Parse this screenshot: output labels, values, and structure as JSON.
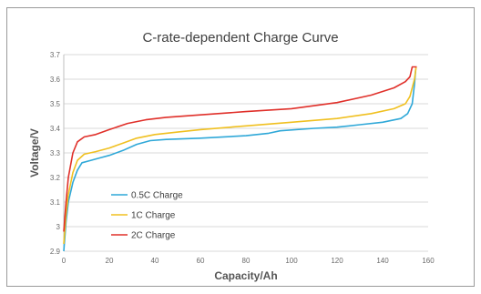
{
  "chart_data": {
    "type": "line",
    "title": "C-rate-dependent Charge Curve",
    "xlabel": "Capacity/Ah",
    "ylabel": "Voltage/V",
    "xlim": [
      0,
      160
    ],
    "ylim": [
      2.9,
      3.7
    ],
    "xticks": [
      "0",
      "20",
      "40",
      "60",
      "80",
      "100",
      "120",
      "140",
      "160"
    ],
    "yticks": [
      "2.9",
      "3",
      "3.1",
      "3.2",
      "3.3",
      "3.4",
      "3.5",
      "3.6",
      "3.7"
    ],
    "grid": "horizontal",
    "legend_position": "bottom-left",
    "series": [
      {
        "name": "0.5C Charge",
        "color": "#2fa8d8",
        "points": [
          [
            0,
            2.9
          ],
          [
            1,
            3.02
          ],
          [
            2,
            3.1
          ],
          [
            4,
            3.18
          ],
          [
            6,
            3.23
          ],
          [
            8,
            3.26
          ],
          [
            12,
            3.27
          ],
          [
            16,
            3.28
          ],
          [
            20,
            3.29
          ],
          [
            26,
            3.31
          ],
          [
            32,
            3.335
          ],
          [
            38,
            3.35
          ],
          [
            45,
            3.355
          ],
          [
            60,
            3.36
          ],
          [
            80,
            3.37
          ],
          [
            90,
            3.38
          ],
          [
            95,
            3.39
          ],
          [
            110,
            3.4
          ],
          [
            120,
            3.405
          ],
          [
            130,
            3.415
          ],
          [
            140,
            3.425
          ],
          [
            148,
            3.44
          ],
          [
            151,
            3.46
          ],
          [
            153,
            3.5
          ],
          [
            154,
            3.58
          ],
          [
            154.5,
            3.64
          ]
        ]
      },
      {
        "name": "1C Charge",
        "color": "#f0c020",
        "points": [
          [
            0,
            2.93
          ],
          [
            1,
            3.05
          ],
          [
            2,
            3.13
          ],
          [
            4,
            3.22
          ],
          [
            6,
            3.27
          ],
          [
            9,
            3.295
          ],
          [
            14,
            3.305
          ],
          [
            20,
            3.32
          ],
          [
            26,
            3.34
          ],
          [
            32,
            3.36
          ],
          [
            40,
            3.375
          ],
          [
            50,
            3.385
          ],
          [
            60,
            3.395
          ],
          [
            80,
            3.41
          ],
          [
            100,
            3.425
          ],
          [
            120,
            3.44
          ],
          [
            135,
            3.46
          ],
          [
            145,
            3.48
          ],
          [
            150,
            3.5
          ],
          [
            152,
            3.53
          ],
          [
            154,
            3.6
          ],
          [
            154.7,
            3.65
          ]
        ]
      },
      {
        "name": "2C Charge",
        "color": "#e0302a",
        "points": [
          [
            0,
            2.98
          ],
          [
            1,
            3.1
          ],
          [
            2,
            3.2
          ],
          [
            4,
            3.3
          ],
          [
            6,
            3.345
          ],
          [
            9,
            3.365
          ],
          [
            14,
            3.375
          ],
          [
            20,
            3.395
          ],
          [
            28,
            3.42
          ],
          [
            36,
            3.435
          ],
          [
            45,
            3.445
          ],
          [
            60,
            3.455
          ],
          [
            80,
            3.468
          ],
          [
            100,
            3.48
          ],
          [
            120,
            3.505
          ],
          [
            135,
            3.535
          ],
          [
            145,
            3.565
          ],
          [
            150,
            3.59
          ],
          [
            152,
            3.61
          ],
          [
            153,
            3.65
          ],
          [
            155,
            3.65
          ]
        ]
      }
    ]
  }
}
